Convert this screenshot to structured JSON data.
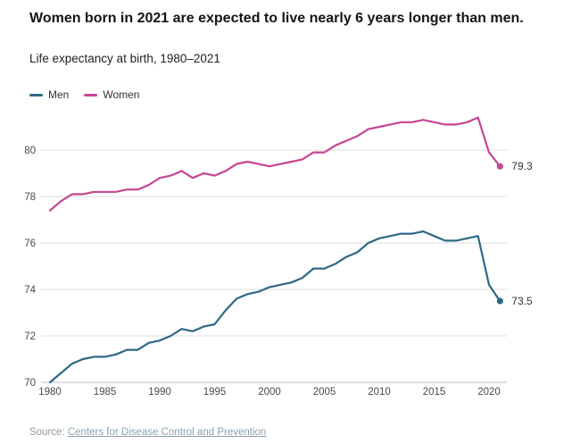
{
  "header": {
    "title": "Women born in 2021 are expected to live nearly 6 years longer than men.",
    "subtitle": "Life expectancy at birth, 1980–2021"
  },
  "source": {
    "prefix": "Source:",
    "link_text": "Centers for Disease Control and Prevention"
  },
  "chart_data": {
    "type": "line",
    "title": "Women born in 2021 are expected to live nearly 6 years longer than men.",
    "subtitle": "Life expectancy at birth, 1980–2021",
    "xlabel": "",
    "ylabel": "",
    "ylim": [
      70,
      81.5
    ],
    "y_ticks": [
      70,
      72,
      74,
      76,
      78,
      80
    ],
    "x_ticks": [
      1980,
      1985,
      1990,
      1995,
      2000,
      2005,
      2010,
      2015,
      2020
    ],
    "grid": "horizontal",
    "legend_position": "top-left",
    "x": [
      1980,
      1981,
      1982,
      1983,
      1984,
      1985,
      1986,
      1987,
      1988,
      1989,
      1990,
      1991,
      1992,
      1993,
      1994,
      1995,
      1996,
      1997,
      1998,
      1999,
      2000,
      2001,
      2002,
      2003,
      2004,
      2005,
      2006,
      2007,
      2008,
      2009,
      2010,
      2011,
      2012,
      2013,
      2014,
      2015,
      2016,
      2017,
      2018,
      2019,
      2020,
      2021
    ],
    "series": [
      {
        "name": "Men",
        "color": "#2e6886",
        "end_label": "73.5",
        "values": [
          70.0,
          70.4,
          70.8,
          71.0,
          71.1,
          71.1,
          71.2,
          71.4,
          71.4,
          71.7,
          71.8,
          72.0,
          72.3,
          72.2,
          72.4,
          72.5,
          73.1,
          73.6,
          73.8,
          73.9,
          74.1,
          74.2,
          74.3,
          74.5,
          74.9,
          74.9,
          75.1,
          75.4,
          75.6,
          76.0,
          76.2,
          76.3,
          76.4,
          76.4,
          76.5,
          76.3,
          76.1,
          76.1,
          76.2,
          76.3,
          74.2,
          73.5
        ]
      },
      {
        "name": "Women",
        "color": "#c64691",
        "end_label": "79.3",
        "values": [
          77.4,
          77.8,
          78.1,
          78.1,
          78.2,
          78.2,
          78.2,
          78.3,
          78.3,
          78.5,
          78.8,
          78.9,
          79.1,
          78.8,
          79.0,
          78.9,
          79.1,
          79.4,
          79.5,
          79.4,
          79.3,
          79.4,
          79.5,
          79.6,
          79.9,
          79.9,
          80.2,
          80.4,
          80.6,
          80.9,
          81.0,
          81.1,
          81.2,
          81.2,
          81.3,
          81.2,
          81.1,
          81.1,
          81.2,
          81.4,
          79.9,
          79.3
        ]
      }
    ]
  }
}
